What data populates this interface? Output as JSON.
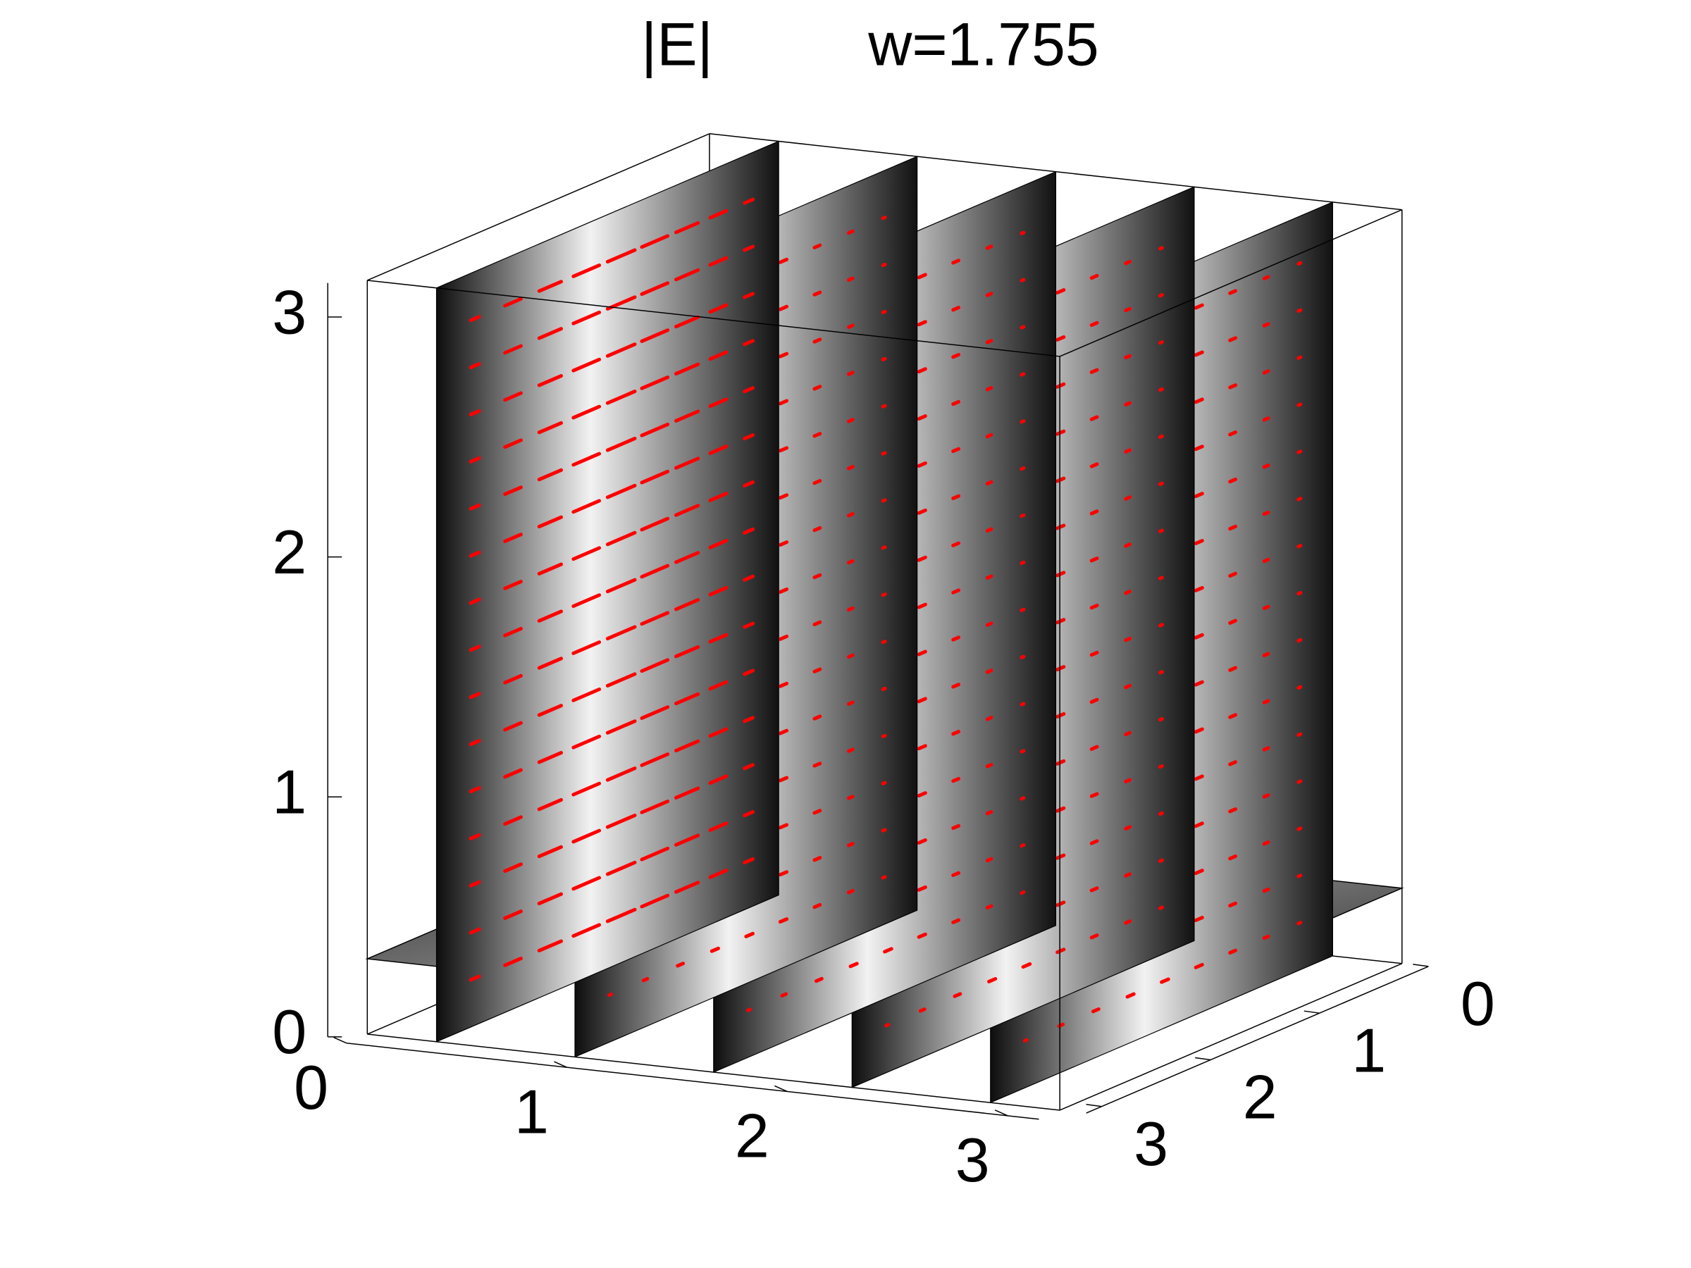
{
  "chart_data": {
    "type": "slice3d",
    "title": "|E|",
    "subtitle": "w=1.755",
    "xlim": [
      0,
      3.1416
    ],
    "ylim": [
      0,
      3.1416
    ],
    "zlim": [
      0,
      3.1416
    ],
    "xticks": [
      0,
      1,
      2,
      3
    ],
    "yticks": [
      0,
      1,
      2,
      3
    ],
    "zticks": [
      0,
      1,
      2,
      3
    ],
    "slices": {
      "x": [
        0.314,
        0.942,
        1.571,
        2.199,
        2.827
      ],
      "z": [
        0.314
      ]
    },
    "colormap": "gray",
    "arrow_color": "#ff0000",
    "box": true
  }
}
